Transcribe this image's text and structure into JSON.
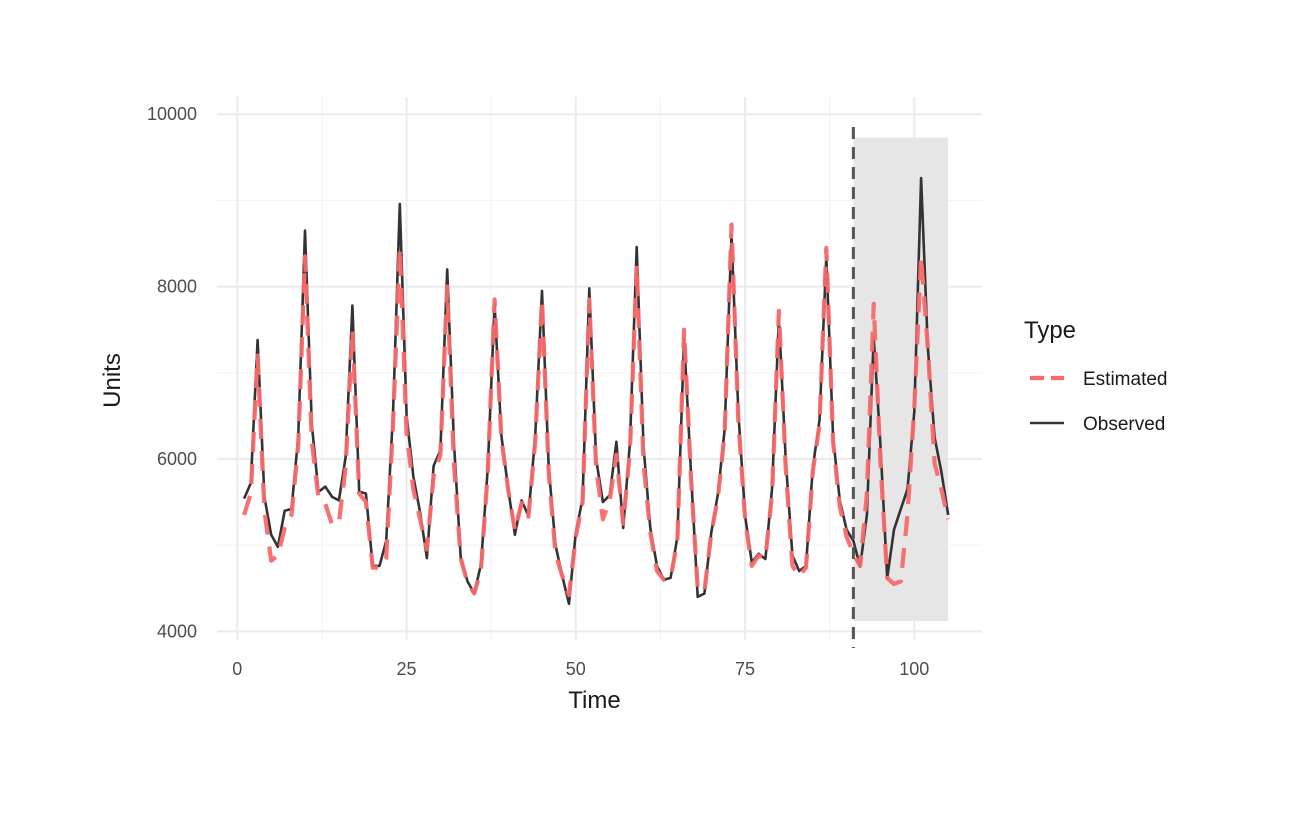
{
  "chart_data": {
    "type": "line",
    "title": "",
    "xlabel": "Time",
    "ylabel": "Units",
    "xlim": [
      -3,
      110
    ],
    "ylim": [
      3900,
      10200
    ],
    "x_ticks": [
      0,
      25,
      50,
      75,
      100
    ],
    "y_ticks": [
      4000,
      6000,
      8000,
      10000
    ],
    "grid": true,
    "legend": {
      "title": "Type",
      "placement": "right",
      "entries": [
        {
          "label": "Estimated",
          "color": "#f8696b",
          "style": "dashed"
        },
        {
          "label": "Observed",
          "color": "#333333",
          "style": "solid"
        }
      ]
    },
    "forecast_start": 91,
    "shaded_region": {
      "x": [
        91,
        105
      ],
      "y": [
        4120,
        9730
      ],
      "color": "#e6e6e6"
    },
    "x": [
      1,
      2,
      3,
      4,
      5,
      6,
      7,
      8,
      9,
      10,
      11,
      12,
      13,
      14,
      15,
      16,
      17,
      18,
      19,
      20,
      21,
      22,
      23,
      24,
      25,
      26,
      27,
      28,
      29,
      30,
      31,
      32,
      33,
      34,
      35,
      36,
      37,
      38,
      39,
      40,
      41,
      42,
      43,
      44,
      45,
      46,
      47,
      48,
      49,
      50,
      51,
      52,
      53,
      54,
      55,
      56,
      57,
      58,
      59,
      60,
      61,
      62,
      63,
      64,
      65,
      66,
      67,
      68,
      69,
      70,
      71,
      72,
      73,
      74,
      75,
      76,
      77,
      78,
      79,
      80,
      81,
      82,
      83,
      84,
      85,
      86,
      87,
      88,
      89,
      90,
      91,
      92,
      93,
      94,
      95,
      96,
      97,
      98,
      99,
      100,
      101,
      102,
      103,
      104,
      105
    ],
    "series": [
      {
        "name": "Observed",
        "color": "#333333",
        "values": [
          5540,
          5720,
          7380,
          5560,
          5120,
          4980,
          5400,
          5420,
          6250,
          8650,
          6400,
          5620,
          5680,
          5560,
          5520,
          6020,
          7780,
          5620,
          5600,
          4760,
          4760,
          5050,
          6520,
          8960,
          6500,
          5800,
          5380,
          4850,
          5920,
          6100,
          8200,
          6200,
          4860,
          4580,
          4440,
          4780,
          5900,
          7800,
          6280,
          5660,
          5120,
          5520,
          5340,
          6260,
          7950,
          5900,
          5000,
          4640,
          4320,
          5150,
          5540,
          7980,
          6000,
          5500,
          5580,
          6200,
          5200,
          6200,
          8460,
          6150,
          5200,
          4760,
          4600,
          4620,
          5100,
          7400,
          5860,
          4400,
          4440,
          5140,
          5600,
          6350,
          8600,
          6550,
          5340,
          4800,
          4900,
          4840,
          5660,
          7640,
          6000,
          4880,
          4700,
          4760,
          5900,
          6450,
          8350,
          6250,
          5520,
          5180,
          5050,
          4750,
          5350,
          7420,
          6150,
          4620,
          5180,
          5420,
          5650,
          6550,
          9260,
          7300,
          6250,
          5850,
          5350
        ]
      },
      {
        "name": "Estimated",
        "color": "#f8696b",
        "values": [
          5350,
          5600,
          7200,
          5400,
          4820,
          4880,
          5200,
          5350,
          6150,
          8350,
          6200,
          5550,
          5480,
          5240,
          5260,
          5900,
          7500,
          5600,
          5500,
          4740,
          4740,
          4850,
          6400,
          8450,
          6300,
          5650,
          5300,
          4950,
          5800,
          6050,
          8000,
          5950,
          4850,
          4560,
          4440,
          4720,
          5850,
          7850,
          6250,
          5650,
          5170,
          5490,
          5330,
          6200,
          7850,
          5850,
          4900,
          4640,
          4420,
          5100,
          5500,
          7850,
          5900,
          5300,
          5520,
          6050,
          5250,
          6100,
          8250,
          5950,
          5150,
          4700,
          4600,
          4620,
          5050,
          7500,
          5800,
          4500,
          4460,
          5130,
          5560,
          6300,
          8720,
          6450,
          5300,
          4760,
          4880,
          4850,
          5600,
          7720,
          5900,
          4760,
          4640,
          4740,
          5850,
          6400,
          8450,
          6200,
          5450,
          5100,
          4900,
          4760,
          5600,
          7800,
          5950,
          4620,
          4550,
          4580,
          5350,
          6600,
          8350,
          7300,
          5950,
          5650,
          5300
        ]
      }
    ]
  }
}
